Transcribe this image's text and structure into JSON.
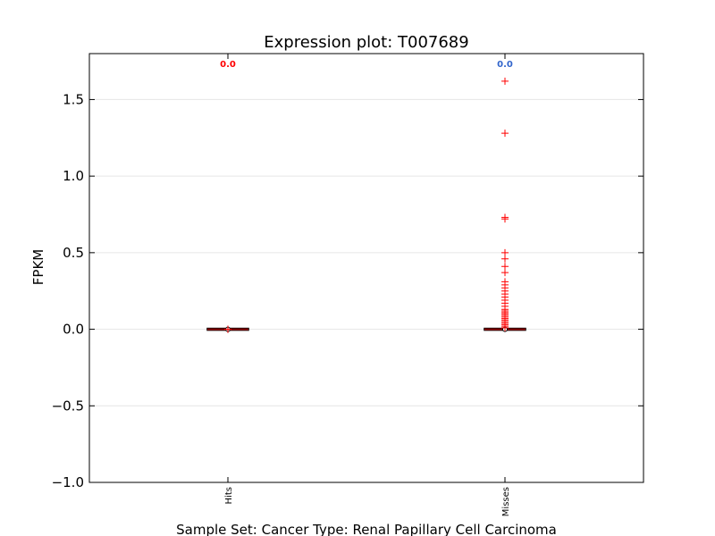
{
  "chart_data": {
    "type": "boxplot",
    "title": "Expression plot: T007689",
    "xlabel": "Sample Set: Cancer Type: Renal Papillary Cell Carcinoma",
    "ylabel": "FPKM",
    "ylim": [
      -1.0,
      1.8
    ],
    "yticks": [
      {
        "value": -1.0,
        "label": "−1.0"
      },
      {
        "value": -0.5,
        "label": "−0.5"
      },
      {
        "value": 0.0,
        "label": "0.0"
      },
      {
        "value": 0.5,
        "label": "0.5"
      },
      {
        "value": 1.0,
        "label": "1.0"
      },
      {
        "value": 1.5,
        "label": "1.5"
      }
    ],
    "grid": "horizontal",
    "categories": [
      "Hits",
      "Misses"
    ],
    "groups": [
      {
        "name": "Hits",
        "median_label": "0.0",
        "median_label_color": "#ff0000",
        "q1": 0.0,
        "median": 0.0,
        "q3": 0.0,
        "whisker_low": 0.0,
        "whisker_high": 0.0,
        "outliers": [
          0.0,
          0.0
        ]
      },
      {
        "name": "Misses",
        "median_label": "0.0",
        "median_label_color": "#3366cc",
        "q1": 0.0,
        "median": 0.0,
        "q3": 0.0,
        "whisker_low": 0.0,
        "whisker_high": 0.0,
        "outliers": [
          1.62,
          1.28,
          0.73,
          0.72,
          0.5,
          0.46,
          0.41,
          0.37,
          0.31,
          0.29,
          0.27,
          0.25,
          0.23,
          0.21,
          0.19,
          0.17,
          0.15,
          0.13,
          0.12,
          0.11,
          0.1,
          0.09,
          0.08,
          0.07,
          0.06,
          0.05,
          0.04,
          0.03,
          0.02,
          0.01
        ]
      }
    ],
    "colors": {
      "outlier": "#ff0000",
      "box": "#000000",
      "median": "#8b0000",
      "grid": "#e6e6e6"
    }
  }
}
